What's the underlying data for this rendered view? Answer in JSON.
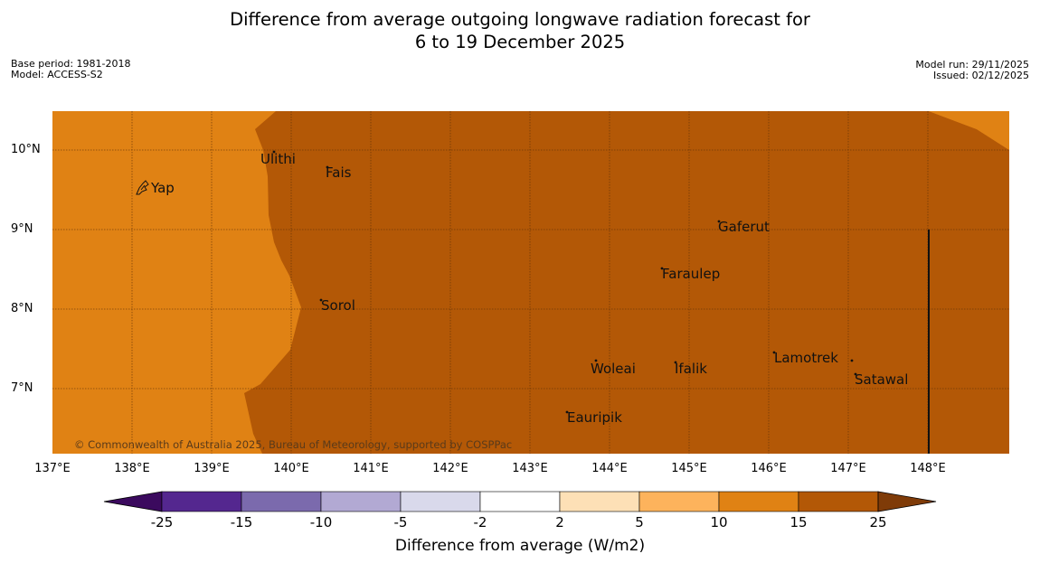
{
  "title_line1": "Difference from average outgoing longwave radiation forecast for",
  "title_line2": "6 to 19 December 2025",
  "meta_left": [
    "Base period: 1981-2018",
    "Model: ACCESS-S2"
  ],
  "meta_right": [
    "Model run: 29/11/2025",
    "Issued: 02/12/2025"
  ],
  "lat_labels": [
    "10°N",
    "9°N",
    "8°N",
    "7°N"
  ],
  "lon_labels": [
    "137°E",
    "138°E",
    "139°E",
    "140°E",
    "141°E",
    "142°E",
    "143°E",
    "144°E",
    "145°E",
    "146°E",
    "147°E",
    "148°E"
  ],
  "places": [
    "Ulithi",
    "Fais",
    "Yap",
    "Gaferut",
    "Faraulep",
    "Sorol",
    "Lamotrek",
    "Woleai",
    "Ifalik",
    "Satawal",
    "Eauripik"
  ],
  "copyright": "© Commonwealth of Australia 2025, Bureau of Meteorology, supported by COSPPac",
  "colorbar": {
    "title": "Difference from average (W/m2)",
    "tick_labels": [
      "-25",
      "-15",
      "-10",
      "-5",
      "-2",
      "2",
      "5",
      "10",
      "15",
      "25"
    ],
    "colors": [
      "#3b0a5e",
      "#54278f",
      "#7b6aad",
      "#b2a9d3",
      "#d9d9eb",
      "#ffffff",
      "#fde0b6",
      "#fdb35c",
      "#e08214",
      "#b35806",
      "#7f3b08"
    ]
  },
  "field_colors": {
    "band_10_15": "#e08214",
    "band_15_25": "#b35806"
  }
}
